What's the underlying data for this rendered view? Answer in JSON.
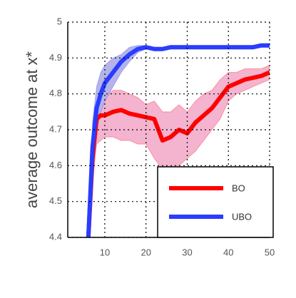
{
  "chart_data": {
    "type": "line",
    "ylabel": "average outcome at x*",
    "x": [
      6,
      7,
      8,
      9,
      10,
      12,
      14,
      16,
      18,
      20,
      22,
      24,
      26,
      28,
      30,
      32,
      34,
      36,
      38,
      40,
      42,
      44,
      46,
      48,
      50
    ],
    "series": [
      {
        "name": "BO",
        "color": "#ff0000",
        "band_color": "#f4b3cf",
        "values": [
          4.4,
          4.62,
          4.73,
          4.74,
          4.74,
          4.75,
          4.755,
          4.745,
          4.74,
          4.735,
          4.73,
          4.67,
          4.68,
          4.7,
          4.69,
          4.72,
          4.74,
          4.76,
          4.79,
          4.82,
          4.83,
          4.84,
          4.845,
          4.85,
          4.86
        ],
        "upper": [
          4.45,
          4.7,
          4.77,
          4.78,
          4.79,
          4.81,
          4.81,
          4.8,
          4.79,
          4.77,
          4.78,
          4.75,
          4.75,
          4.77,
          4.75,
          4.78,
          4.8,
          4.81,
          4.84,
          4.86,
          4.86,
          4.87,
          4.87,
          4.87,
          4.88
        ],
        "lower": [
          4.35,
          4.55,
          4.66,
          4.67,
          4.68,
          4.68,
          4.67,
          4.67,
          4.66,
          4.66,
          4.62,
          4.59,
          4.58,
          4.6,
          4.62,
          4.64,
          4.67,
          4.7,
          4.73,
          4.78,
          4.8,
          4.81,
          4.82,
          4.83,
          4.84
        ]
      },
      {
        "name": "UBO",
        "color": "#2a3cff",
        "band_color": "#b4b4ea",
        "values": [
          4.4,
          4.65,
          4.76,
          4.8,
          4.83,
          4.86,
          4.89,
          4.91,
          4.925,
          4.93,
          4.925,
          4.925,
          4.93,
          4.93,
          4.93,
          4.93,
          4.93,
          4.93,
          4.93,
          4.93,
          4.93,
          4.93,
          4.93,
          4.935,
          4.935
        ],
        "upper": [
          4.45,
          4.72,
          4.82,
          4.86,
          4.88,
          4.9,
          4.91,
          4.93,
          4.935,
          4.935,
          4.93,
          4.93,
          4.935,
          4.935,
          4.935,
          4.935,
          4.935,
          4.935,
          4.935,
          4.935,
          4.935,
          4.935,
          4.935,
          4.94,
          4.94
        ],
        "lower": [
          4.35,
          4.6,
          4.7,
          4.75,
          4.78,
          4.82,
          4.86,
          4.89,
          4.915,
          4.925,
          4.92,
          4.92,
          4.925,
          4.925,
          4.925,
          4.925,
          4.925,
          4.925,
          4.925,
          4.925,
          4.925,
          4.925,
          4.925,
          4.93,
          4.93
        ]
      }
    ],
    "xlim": [
      1,
      50
    ],
    "xticks": [
      10,
      20,
      30,
      40,
      50
    ],
    "ylim": [
      4.4,
      5
    ],
    "yticks": [
      4.4,
      4.5,
      4.6,
      4.7,
      4.8,
      4.9,
      5
    ],
    "grid": true,
    "legend": "lower right"
  }
}
